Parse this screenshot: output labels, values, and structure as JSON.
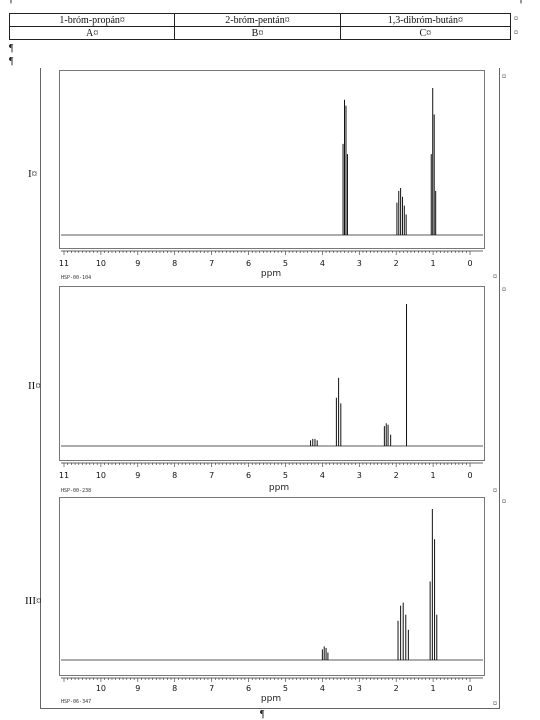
{
  "paragraph_mark": "¶",
  "cell_mark": "¤",
  "compounds": {
    "names": [
      "1-bróm-propán¤",
      "2-bróm-pentán¤",
      "1,3-dibróm-bután¤"
    ],
    "letters": [
      "A¤",
      "B¤",
      "C¤"
    ]
  },
  "spectra": [
    {
      "label": "I¤",
      "code": "HSP-00-104",
      "xlabel": "ppm",
      "ticks": [
        "11",
        "10",
        "9",
        "8",
        "7",
        "6",
        "5",
        "4",
        "3",
        "2",
        "1",
        "0"
      ],
      "axis_max": 11,
      "peaks": [
        {
          "ppm": 3.44,
          "h": 0.62
        },
        {
          "ppm": 3.4,
          "h": 0.92
        },
        {
          "ppm": 3.36,
          "h": 0.88
        },
        {
          "ppm": 3.32,
          "h": 0.55
        },
        {
          "ppm": 1.98,
          "h": 0.22
        },
        {
          "ppm": 1.93,
          "h": 0.3
        },
        {
          "ppm": 1.88,
          "h": 0.32
        },
        {
          "ppm": 1.83,
          "h": 0.26
        },
        {
          "ppm": 1.78,
          "h": 0.2
        },
        {
          "ppm": 1.73,
          "h": 0.14
        },
        {
          "ppm": 1.05,
          "h": 0.55
        },
        {
          "ppm": 1.01,
          "h": 1.0
        },
        {
          "ppm": 0.97,
          "h": 0.82
        },
        {
          "ppm": 0.93,
          "h": 0.3
        }
      ]
    },
    {
      "label": "II¤",
      "code": "HSP-00-238",
      "xlabel": "ppm",
      "ticks": [
        "11",
        "10",
        "9",
        "8",
        "7",
        "6",
        "5",
        "4",
        "3",
        "2",
        "1",
        "0"
      ],
      "axis_max": 11,
      "peaks": [
        {
          "ppm": 4.32,
          "h": 0.04
        },
        {
          "ppm": 4.26,
          "h": 0.05
        },
        {
          "ppm": 4.2,
          "h": 0.05
        },
        {
          "ppm": 4.14,
          "h": 0.04
        },
        {
          "ppm": 3.62,
          "h": 0.34
        },
        {
          "ppm": 3.56,
          "h": 0.48
        },
        {
          "ppm": 3.5,
          "h": 0.3
        },
        {
          "ppm": 2.32,
          "h": 0.14
        },
        {
          "ppm": 2.27,
          "h": 0.16
        },
        {
          "ppm": 2.22,
          "h": 0.15
        },
        {
          "ppm": 2.15,
          "h": 0.08
        },
        {
          "ppm": 1.72,
          "h": 1.0
        }
      ]
    },
    {
      "label": "III¤",
      "code": "HSP-06-347",
      "xlabel": "ppm",
      "ticks": [
        "10",
        "9",
        "8",
        "7",
        "6",
        "5",
        "4",
        "3",
        "2",
        "1",
        "0"
      ],
      "axis_max": 11,
      "peaks": [
        {
          "ppm": 4.0,
          "h": 0.07
        },
        {
          "ppm": 3.95,
          "h": 0.09
        },
        {
          "ppm": 3.9,
          "h": 0.08
        },
        {
          "ppm": 3.85,
          "h": 0.05
        },
        {
          "ppm": 1.95,
          "h": 0.26
        },
        {
          "ppm": 1.88,
          "h": 0.36
        },
        {
          "ppm": 1.81,
          "h": 0.38
        },
        {
          "ppm": 1.74,
          "h": 0.3
        },
        {
          "ppm": 1.67,
          "h": 0.2
        },
        {
          "ppm": 1.08,
          "h": 0.52
        },
        {
          "ppm": 1.02,
          "h": 1.0
        },
        {
          "ppm": 0.96,
          "h": 0.8
        },
        {
          "ppm": 0.9,
          "h": 0.3
        }
      ]
    }
  ]
}
